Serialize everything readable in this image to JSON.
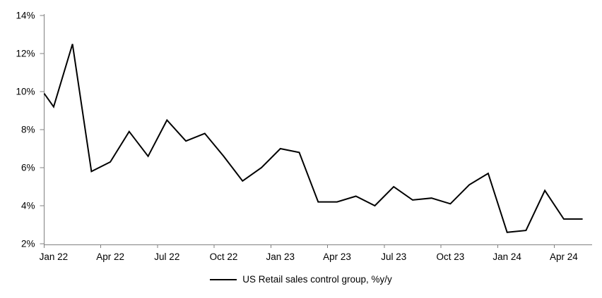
{
  "chart_data": {
    "type": "line",
    "title": "",
    "series_name": "US Retail sales control group, %y/y",
    "x": [
      "Jan 22",
      "Feb 22",
      "Mar 22",
      "Apr 22",
      "May 22",
      "Jun 22",
      "Jul 22",
      "Aug 22",
      "Sep 22",
      "Oct 22",
      "Nov 22",
      "Dec 22",
      "Jan 23",
      "Feb 23",
      "Mar 23",
      "Apr 23",
      "May 23",
      "Jun 23",
      "Jul 23",
      "Aug 23",
      "Sep 23",
      "Oct 23",
      "Nov 23",
      "Dec 23",
      "Jan 24",
      "Feb 24",
      "Mar 24",
      "Apr 24",
      "May 24"
    ],
    "values": [
      9.2,
      12.5,
      5.8,
      6.3,
      7.9,
      6.6,
      8.5,
      7.4,
      7.8,
      6.6,
      5.3,
      6.0,
      7.0,
      6.8,
      4.2,
      4.2,
      4.5,
      4.0,
      5.0,
      4.3,
      4.4,
      4.1,
      5.1,
      5.7,
      2.6,
      2.7,
      4.8,
      3.3,
      3.3
    ],
    "leading_edge_value": 9.9,
    "ylim": [
      2,
      14
    ],
    "ytick_step": 2,
    "ytick_labels": [
      "2%",
      "4%",
      "6%",
      "8%",
      "10%",
      "12%",
      "14%"
    ],
    "xtick_labels": [
      "Jan 22",
      "Apr 22",
      "Jul 22",
      "Oct 22",
      "Jan 23",
      "Apr 23",
      "Jul 23",
      "Oct 23",
      "Jan 24",
      "Apr 24"
    ],
    "xtick_interval_months": 3,
    "grid": false,
    "legend_position": "bottom-center",
    "line_color": "#000000",
    "axis_color": "#808080",
    "line_width": 2
  },
  "legend": {
    "label": "US Retail sales control group, %y/y"
  }
}
